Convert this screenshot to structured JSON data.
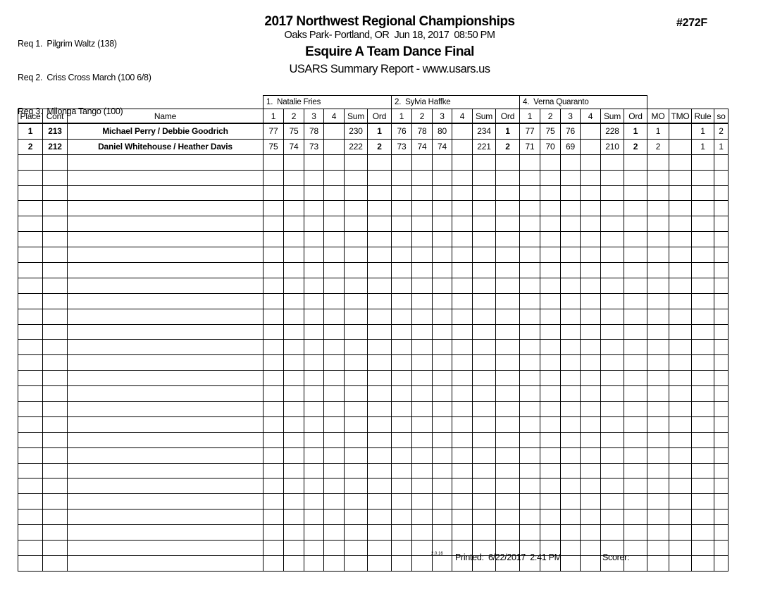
{
  "requirements": {
    "items": [
      "Req 1.  Pilgrim Waltz (138)",
      "Req 2.  Criss Cross March (100 6/8)",
      "Req 3.  Milonga Tango (100)"
    ]
  },
  "header": {
    "title": "2017 Northwest Regional Championships",
    "venue_line": "Oaks Park- Portland, OR  Jun 18, 2017  08:50 PM",
    "event_name": "Esquire A Team Dance Final",
    "report_name": "USARS Summary Report - www.usars.us",
    "event_number": "#272F"
  },
  "table": {
    "judges": [
      "1.  Natalie Fries",
      "2.  Sylvia Haffke",
      "4.  Verna Quaranto"
    ],
    "left_headers": [
      "Place",
      "Cont",
      "Name"
    ],
    "judge_subheaders": [
      "1",
      "2",
      "3",
      "4",
      "Sum",
      "Ord"
    ],
    "right_headers": [
      "MO",
      "TMO",
      "Rule",
      "so"
    ],
    "rows": [
      {
        "place": "1",
        "cont": "213",
        "name": "Michael Perry / Debbie Goodrich",
        "judges": [
          {
            "scores": [
              "77",
              "75",
              "78",
              ""
            ],
            "sum": "230",
            "ord": "1"
          },
          {
            "scores": [
              "76",
              "78",
              "80",
              ""
            ],
            "sum": "234",
            "ord": "1"
          },
          {
            "scores": [
              "77",
              "75",
              "76",
              ""
            ],
            "sum": "228",
            "ord": "1"
          }
        ],
        "mo": "1",
        "tmo": "",
        "rule": "1",
        "so": "2"
      },
      {
        "place": "2",
        "cont": "212",
        "name": "Daniel Whitehouse / Heather Davis",
        "judges": [
          {
            "scores": [
              "75",
              "74",
              "73",
              ""
            ],
            "sum": "222",
            "ord": "2"
          },
          {
            "scores": [
              "73",
              "74",
              "74",
              ""
            ],
            "sum": "221",
            "ord": "2"
          },
          {
            "scores": [
              "71",
              "70",
              "69",
              ""
            ],
            "sum": "210",
            "ord": "2"
          }
        ],
        "mo": "2",
        "tmo": "",
        "rule": "1",
        "so": "1"
      }
    ],
    "total_rows": 29
  },
  "footer": {
    "version": "2.0.16",
    "printed_line": "Printed:  6/22/2017  2:41 PM",
    "scorer_label": "Scorer:"
  }
}
